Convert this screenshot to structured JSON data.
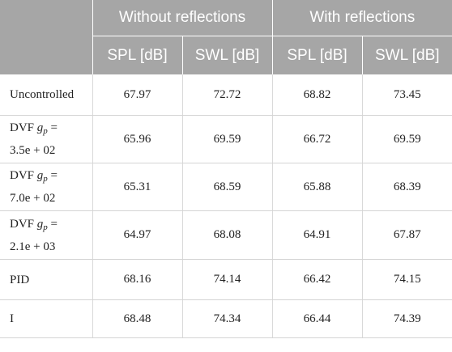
{
  "header": {
    "group_without": "Without reflections",
    "group_with": "With reflections",
    "col_spl": "SPL [dB]",
    "col_swl": "SWL [dB]"
  },
  "rows": [
    {
      "label": "Uncontrolled",
      "vals": [
        "67.97",
        "72.72",
        "68.82",
        "73.45"
      ]
    },
    {
      "label_prefix": "DVF",
      "gain_symbol": "g",
      "gain_sub": "p",
      "label_eq": "=",
      "gain_value": "3.5e + 02",
      "vals": [
        "65.96",
        "69.59",
        "66.72",
        "69.59"
      ]
    },
    {
      "label_prefix": "DVF",
      "gain_symbol": "g",
      "gain_sub": "p",
      "label_eq": "=",
      "gain_value": "7.0e + 02",
      "vals": [
        "65.31",
        "68.59",
        "65.88",
        "68.39"
      ]
    },
    {
      "label_prefix": "DVF",
      "gain_symbol": "g",
      "gain_sub": "p",
      "label_eq": "=",
      "gain_value": "2.1e + 03",
      "vals": [
        "64.97",
        "68.08",
        "64.91",
        "67.87"
      ]
    },
    {
      "label": "PID",
      "vals": [
        "68.16",
        "74.14",
        "66.42",
        "74.15"
      ]
    },
    {
      "label": "I",
      "vals": [
        "68.48",
        "74.34",
        "66.44",
        "74.39"
      ]
    }
  ]
}
